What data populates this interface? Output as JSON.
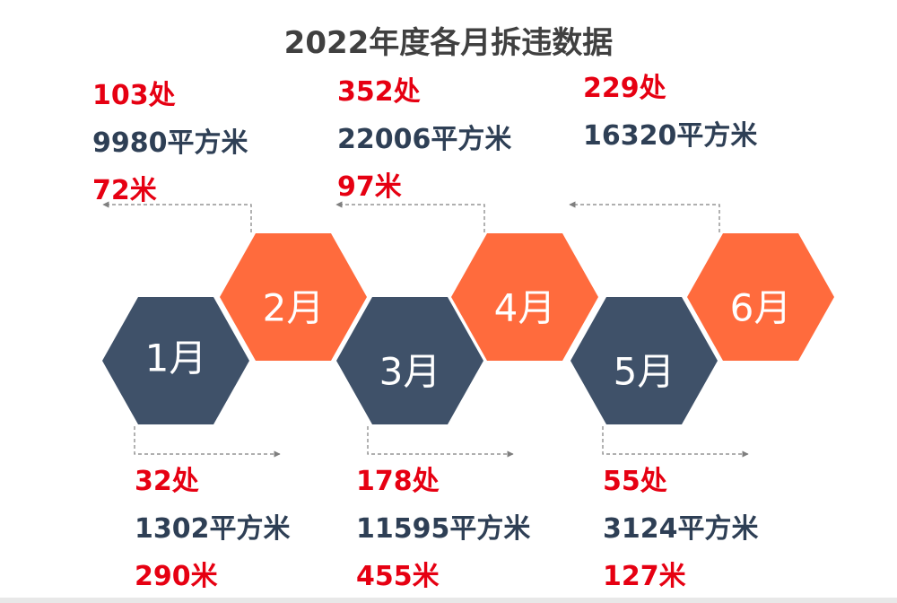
{
  "title": "2022年度各月拆违数据",
  "colors": {
    "dark_hex": "#3f5169",
    "orange_hex": "#ff6b3d",
    "count_text": "#e60012",
    "area_text": "#2e3f55",
    "connector": "#7f7f7f"
  },
  "months": [
    {
      "label": "1月",
      "style": "dark",
      "count": "32处",
      "area": "1302平方米",
      "length": "290米"
    },
    {
      "label": "2月",
      "style": "orange",
      "count": "103处",
      "area": "9980平方米",
      "length": "72米"
    },
    {
      "label": "3月",
      "style": "dark",
      "count": "178处",
      "area": "11595平方米",
      "length": "455米"
    },
    {
      "label": "4月",
      "style": "orange",
      "count": "352处",
      "area": "22006平方米",
      "length": "97米"
    },
    {
      "label": "5月",
      "style": "dark",
      "count": "55处",
      "area": "3124平方米",
      "length": "127米"
    },
    {
      "label": "6月",
      "style": "orange",
      "count": "229处",
      "area": "16320平方米",
      "length": ""
    }
  ]
}
